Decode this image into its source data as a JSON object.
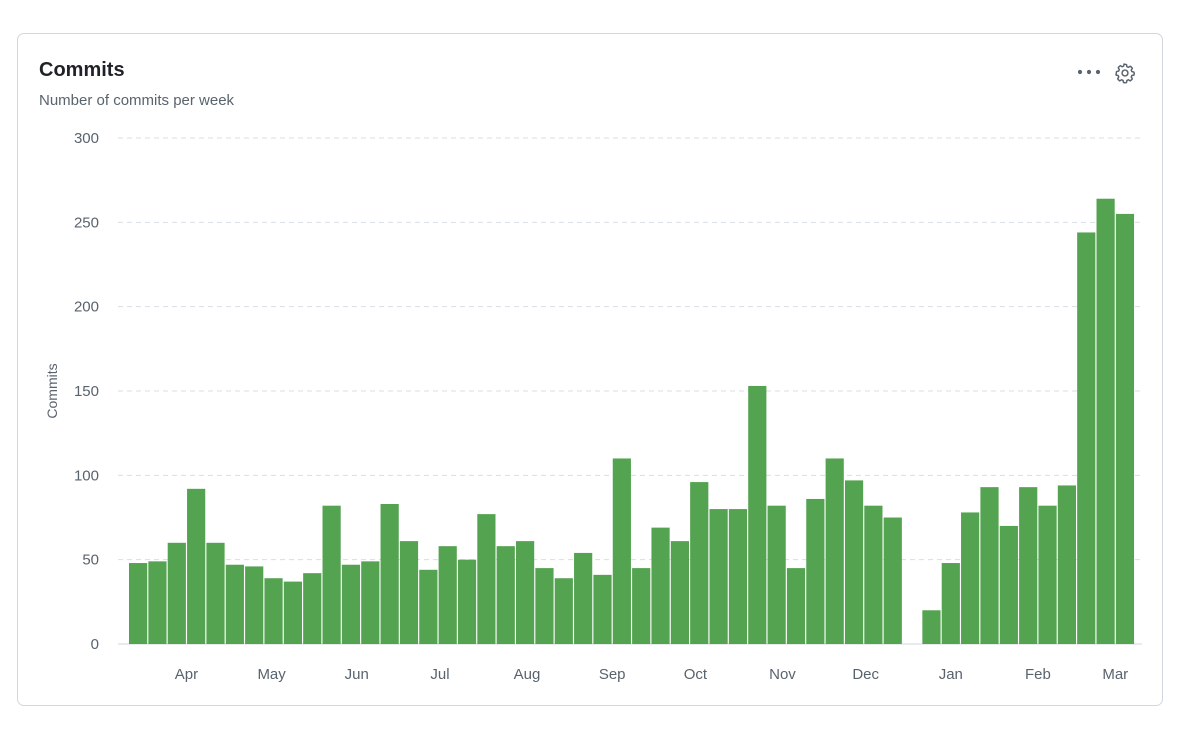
{
  "header": {
    "title": "Commits",
    "subtitle": "Number of commits per week",
    "more_icon": "kebab-horizontal-icon",
    "settings_icon": "gear-icon"
  },
  "colors": {
    "bar": "#54a351",
    "grid": "#d8dee4",
    "axis": "#d0d7de"
  },
  "chart_data": {
    "type": "bar",
    "title": "Commits",
    "subtitle": "Number of commits per week",
    "xlabel": "",
    "ylabel": "Commits",
    "ylim": [
      0,
      300
    ],
    "yticks": [
      0,
      50,
      100,
      150,
      200,
      250,
      300
    ],
    "grid": true,
    "x_tick_labels": [
      {
        "label": "Apr",
        "index": 2.5
      },
      {
        "label": "May",
        "index": 6.9
      },
      {
        "label": "Jun",
        "index": 11.3
      },
      {
        "label": "Jul",
        "index": 15.6
      },
      {
        "label": "Aug",
        "index": 20.1
      },
      {
        "label": "Sep",
        "index": 24.5
      },
      {
        "label": "Oct",
        "index": 28.8
      },
      {
        "label": "Nov",
        "index": 33.3
      },
      {
        "label": "Dec",
        "index": 37.6
      },
      {
        "label": "Jan",
        "index": 42.0
      },
      {
        "label": "Feb",
        "index": 46.5
      },
      {
        "label": "Mar",
        "index": 50.5
      }
    ],
    "values": [
      48,
      49,
      60,
      92,
      60,
      47,
      46,
      39,
      37,
      42,
      82,
      47,
      49,
      83,
      61,
      44,
      58,
      50,
      77,
      58,
      61,
      45,
      39,
      54,
      41,
      110,
      45,
      69,
      61,
      96,
      80,
      80,
      153,
      82,
      45,
      86,
      110,
      97,
      82,
      75,
      0,
      20,
      48,
      78,
      93,
      70,
      93,
      82,
      94,
      244,
      264,
      255
    ]
  }
}
